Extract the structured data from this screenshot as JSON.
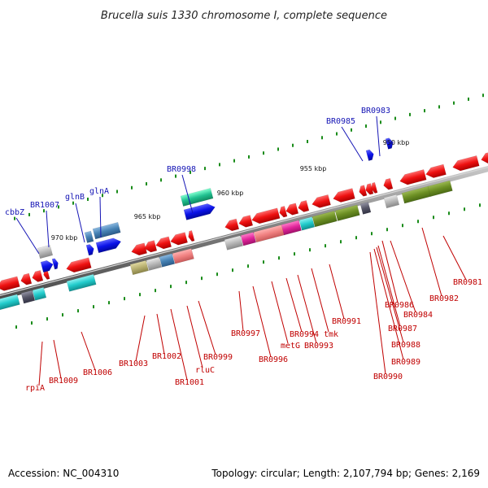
{
  "title": "Brucella suis 1330 chromosome I, complete sequence",
  "footer": {
    "accession": "Accession: NC_004310",
    "topology": "Topology: circular; Length: 2,107,794 bp; Genes: 2,169"
  },
  "scale_labels": [
    "950 kbp",
    "955 kbp",
    "960 kbp",
    "965 kbp",
    "970 kbp"
  ],
  "genes_top": [
    "BR0983",
    "BR0985",
    "BR0998",
    "glnA",
    "glnB",
    "BR1007",
    "cbbZ"
  ],
  "genes_bottom": [
    "BR0981",
    "BR0982",
    "BR0984",
    "BR0986",
    "BR0987",
    "BR0988",
    "BR0989",
    "BR0990",
    "BR0991",
    "tmk",
    "BR0993",
    "BR0994",
    "metG",
    "BR0996",
    "BR0997",
    "BR0999",
    "rluC",
    "BR1001",
    "BR1002",
    "BR1003",
    "BR1006",
    "BR1009",
    "rpiA"
  ],
  "colors": {
    "backbone": "#7a7a7a",
    "gene_red": "#ee1111",
    "gene_blue": "#0b12e8",
    "gene_green": "#6b8e23",
    "gene_cyan": "#22cccc",
    "gene_magenta": "#e0249a",
    "gene_pink": "#f08080",
    "gene_teal": "#20c090",
    "gene_steel": "#4682b4",
    "gene_olive": "#b8b070",
    "gene_gray": "#b8b8b8",
    "ticks": "#1a8c1a",
    "label_red": "#c00000",
    "label_blue": "#1515b5"
  }
}
